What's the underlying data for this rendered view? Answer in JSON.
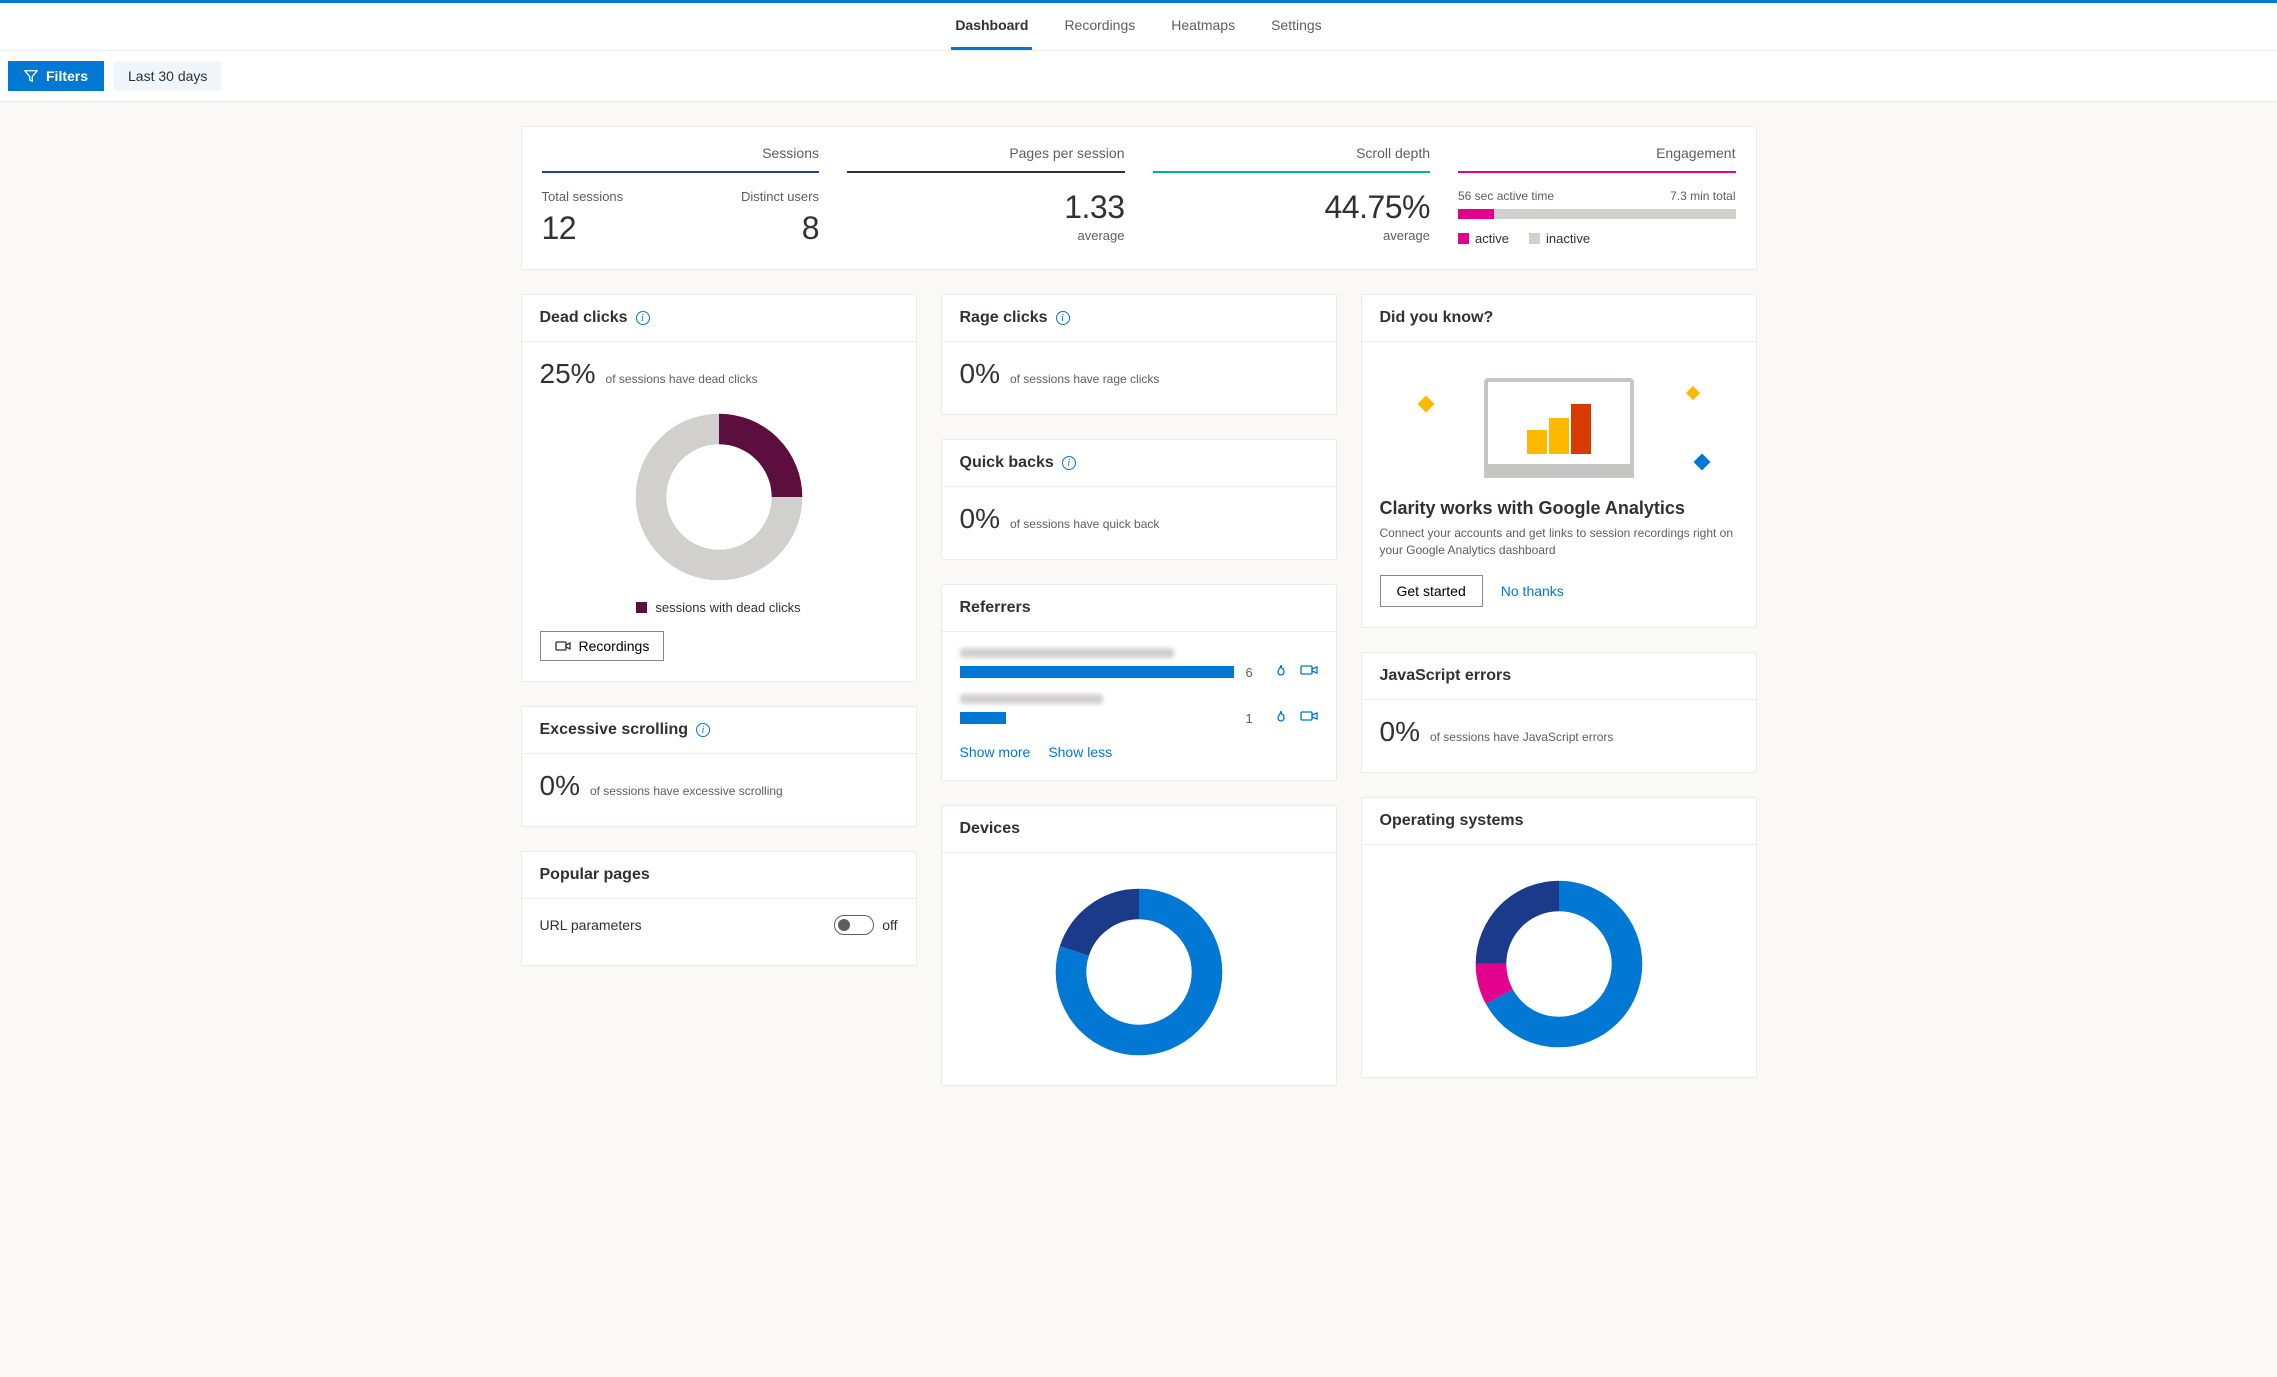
{
  "nav": {
    "tabs": [
      "Dashboard",
      "Recordings",
      "Heatmaps",
      "Settings"
    ],
    "active_index": 0
  },
  "filters": {
    "button_label": "Filters",
    "date_range": "Last 30 days"
  },
  "metrics": {
    "sessions": {
      "title": "Sessions",
      "accent_color": "#2b3e92",
      "total_label": "Total sessions",
      "total_value": "12",
      "distinct_label": "Distinct users",
      "distinct_value": "8"
    },
    "pages_per_session": {
      "title": "Pages per session",
      "accent_color": "#323130",
      "value": "1.33",
      "sub": "average"
    },
    "scroll_depth": {
      "title": "Scroll depth",
      "accent_color": "#00b294",
      "value": "44.75%",
      "sub": "average"
    },
    "engagement": {
      "title": "Engagement",
      "accent_color": "#e3008c",
      "active_label": "56 sec active time",
      "total_label": "7.3 min total",
      "active_pct": 13,
      "legend_active": "active",
      "legend_inactive": "inactive",
      "active_color": "#e3008c",
      "inactive_color": "#d2d0ce"
    }
  },
  "dead_clicks": {
    "title": "Dead clicks",
    "pct": "25%",
    "desc": "of sessions have dead clicks",
    "donut": {
      "value_pct": 25,
      "fill_color": "#5c0f3f",
      "track_color": "#d2d0ce"
    },
    "legend": "sessions with dead clicks",
    "recordings_btn": "Recordings"
  },
  "excessive_scrolling": {
    "title": "Excessive scrolling",
    "pct": "0%",
    "desc": "of sessions have excessive scrolling"
  },
  "popular_pages": {
    "title": "Popular pages",
    "url_params_label": "URL parameters",
    "toggle_state": "off"
  },
  "rage_clicks": {
    "title": "Rage clicks",
    "pct": "0%",
    "desc": "of sessions have rage clicks"
  },
  "quick_backs": {
    "title": "Quick backs",
    "pct": "0%",
    "desc": "of sessions have quick back"
  },
  "referrers": {
    "title": "Referrers",
    "rows": [
      {
        "bar_pct": 100,
        "count": "6",
        "label_width_pct": 60
      },
      {
        "bar_pct": 17,
        "count": "1",
        "label_width_pct": 40
      }
    ],
    "bar_color": "#0078d4",
    "show_more": "Show more",
    "show_less": "Show less"
  },
  "devices": {
    "title": "Devices",
    "donut": {
      "segments": [
        {
          "color": "#0078d4",
          "pct": 80
        },
        {
          "color": "#1b3a8a",
          "pct": 20
        }
      ],
      "track_color": "#ffffff"
    }
  },
  "promo": {
    "heading": "Did you know?",
    "title": "Clarity works with Google Analytics",
    "desc": "Connect your accounts and get links to session recordings right on your Google Analytics dashboard",
    "cta": "Get started",
    "dismiss": "No thanks",
    "spark_colors": {
      "left": "#ffb900",
      "right_top": "#ffb900",
      "right_bottom": "#0078d4"
    }
  },
  "js_errors": {
    "title": "JavaScript errors",
    "pct": "0%",
    "desc": "of sessions have JavaScript errors"
  },
  "os": {
    "title": "Operating systems",
    "donut": {
      "segments": [
        {
          "color": "#0078d4",
          "pct": 67
        },
        {
          "color": "#e3008c",
          "pct": 8
        },
        {
          "color": "#1b3a8a",
          "pct": 25
        }
      ]
    }
  }
}
